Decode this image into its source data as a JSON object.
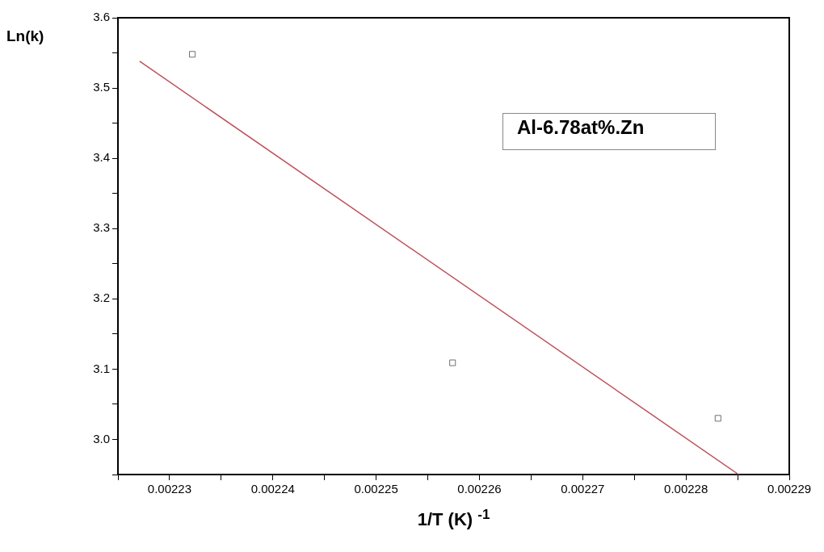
{
  "chart_data": {
    "type": "scatter",
    "xlabel": "1/T (K) $^{-1}$",
    "ylabel": "Ln(k)",
    "annotations": [
      "Al-6.78at%.Zn"
    ],
    "xlim": [
      0.002225,
      0.00229
    ],
    "xticks": [
      {
        "value": 0.002225,
        "label": null
      },
      0.00223,
      {
        "value": 0.002235,
        "label": null
      },
      0.00224,
      {
        "value": 0.002245,
        "label": null
      },
      0.00225,
      {
        "value": 0.002255,
        "label": null
      },
      0.00226,
      {
        "value": 0.002265,
        "label": null
      },
      0.00227,
      {
        "value": 0.002275,
        "label": null
      },
      0.00228,
      {
        "value": 0.002285,
        "label": null
      },
      0.00229
    ],
    "ylim": [
      2.95,
      3.6
    ],
    "yticks": [
      {
        "value": 2.95,
        "label": null
      },
      "3.0",
      {
        "value": 3.05,
        "label": null
      },
      3.1,
      {
        "value": 3.15,
        "label": null
      },
      3.2,
      {
        "value": 3.25,
        "label": null
      },
      3.3,
      {
        "value": 3.35,
        "label": null
      },
      3.4,
      {
        "value": 3.45,
        "label": null
      },
      3.5,
      {
        "value": 3.55,
        "label": null
      },
      3.6
    ],
    "grid": false,
    "legend": false,
    "series": [
      {
        "type": "scatter",
        "color": "#707070",
        "marker": "square",
        "x": [
          0.0022322,
          0.0022574,
          0.0022831
        ],
        "values": [
          3.548,
          3.109,
          3.03
        ]
      },
      {
        "type": "line",
        "color": "#c0505a",
        "marker": "none",
        "line_style": "solid",
        "x": [
          0.0022271,
          0.0022851
        ],
        "values": [
          3.538,
          2.95
        ]
      }
    ]
  }
}
